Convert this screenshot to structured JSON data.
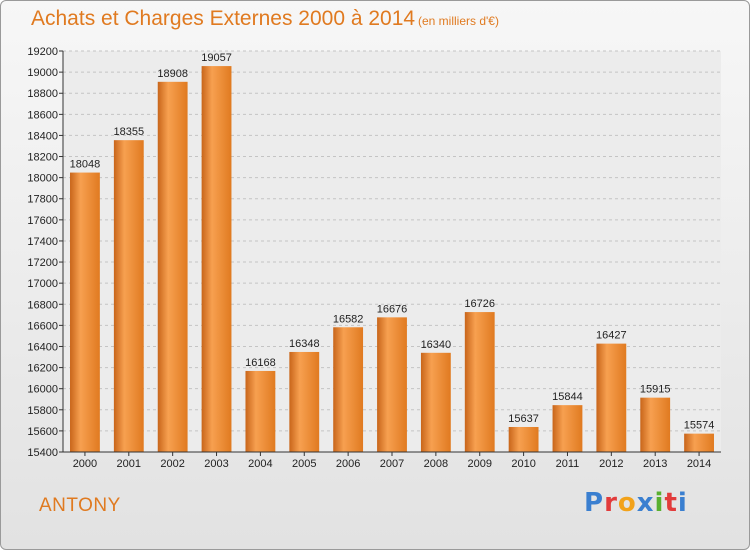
{
  "header": {
    "title": "Achats et Charges Externes 2000 à 2014",
    "subtitle": "(en milliers d'€)"
  },
  "footer": {
    "city": "ANTONY",
    "logo": {
      "letters": [
        "P",
        "r",
        "o",
        "x",
        "i",
        "t",
        "i"
      ],
      "colors": [
        "#3a7fd0",
        "#e23b3b",
        "#f2a21a",
        "#3a7fd0",
        "#59b030",
        "#e23b3b",
        "#3a7fd0"
      ]
    }
  },
  "chart_data": {
    "type": "bar",
    "title": "Achats et Charges Externes 2000 à 2014",
    "subtitle": "(en milliers d'€)",
    "categories": [
      "2000",
      "2001",
      "2002",
      "2003",
      "2004",
      "2005",
      "2006",
      "2007",
      "2008",
      "2009",
      "2010",
      "2011",
      "2012",
      "2013",
      "2014"
    ],
    "values": [
      18048,
      18355,
      18908,
      19057,
      16168,
      16348,
      16582,
      16676,
      16340,
      16726,
      15637,
      15844,
      16427,
      15915,
      15574
    ],
    "ylim": [
      15400,
      19200
    ],
    "ytick_step": 200,
    "grid": true,
    "bar_color": "#f08a2a"
  }
}
